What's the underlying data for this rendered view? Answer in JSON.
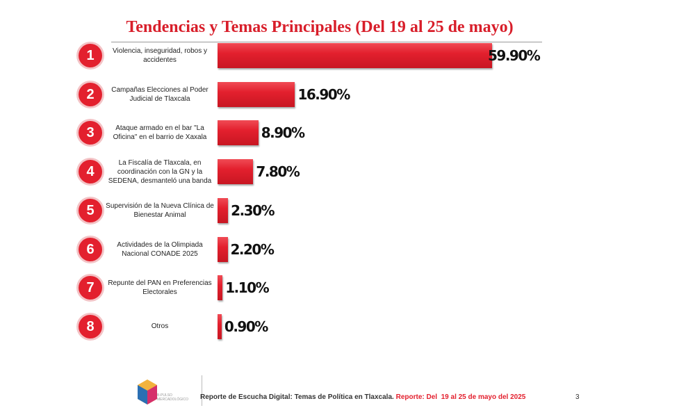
{
  "chart_data": {
    "type": "bar",
    "orientation": "horizontal",
    "title": "Tendencias y Temas Principales (Del 19 al 25 de mayo)",
    "ranks": [
      1,
      2,
      3,
      4,
      5,
      6,
      7,
      8
    ],
    "categories": [
      "Violencia, inseguridad, robos y accidentes",
      "Campañas Elecciones al Poder Judicial de Tlaxcala",
      "Ataque armado en el bar \"La Oficina\" en el barrio de Xaxala",
      "La Fiscalía de Tlaxcala, en coordinación con la GN y la SEDENA, desmanteló una banda",
      "Supervisión de la Nueva Clínica de Bienestar Animal",
      "Actividades de la Olimpiada Nacional CONADE 2025",
      "Repunte del PAN en Preferencias Electorales",
      "Otros"
    ],
    "values": [
      59.9,
      16.9,
      8.9,
      7.8,
      2.3,
      2.2,
      1.1,
      0.9
    ],
    "value_labels": [
      "59.90%",
      "16.90%",
      "8.90%",
      "7.80%",
      "2.30%",
      "2.20%",
      "1.10%",
      "0.90%"
    ],
    "color": "#e3202e"
  },
  "footer": {
    "logo": "B-PULSO MERCADOLÓGICO",
    "report": "Reporte de Escucha Digital: Temas de Política en Tlaxcala.",
    "period": "Reporte: Del  19 al 25 de mayo del 2025",
    "page": "3"
  }
}
